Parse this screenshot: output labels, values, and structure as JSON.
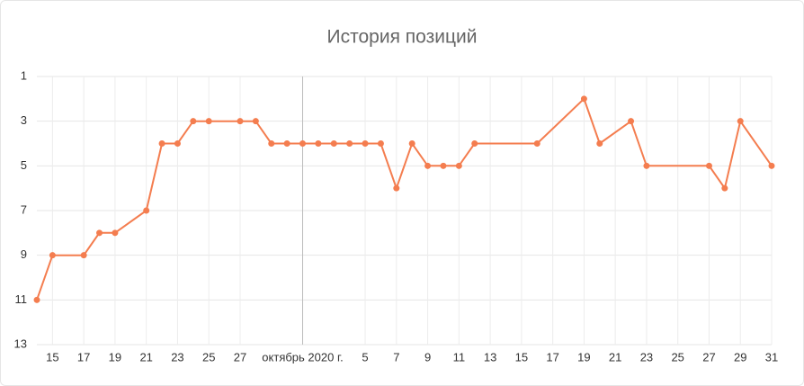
{
  "chart_data": {
    "type": "line",
    "title": "История позиций",
    "x": [
      "2020-09-14",
      "2020-09-15",
      "2020-09-17",
      "2020-09-18",
      "2020-09-19",
      "2020-09-21",
      "2020-09-22",
      "2020-09-23",
      "2020-09-24",
      "2020-09-25",
      "2020-09-27",
      "2020-09-28",
      "2020-09-29",
      "2020-09-30",
      "2020-10-01",
      "2020-10-02",
      "2020-10-03",
      "2020-10-04",
      "2020-10-05",
      "2020-10-06",
      "2020-10-07",
      "2020-10-08",
      "2020-10-09",
      "2020-10-10",
      "2020-10-11",
      "2020-10-12",
      "2020-10-16",
      "2020-10-19",
      "2020-10-20",
      "2020-10-22",
      "2020-10-23",
      "2020-10-27",
      "2020-10-28",
      "2020-10-29",
      "2020-10-31"
    ],
    "series": [
      {
        "color": "#f47d4f",
        "values": [
          11,
          9,
          9,
          8,
          8,
          7,
          4,
          4,
          3,
          3,
          3,
          3,
          4,
          4,
          4,
          4,
          4,
          4,
          4,
          4,
          6,
          4,
          5,
          5,
          5,
          4,
          4,
          2,
          4,
          3,
          5,
          5,
          6,
          3,
          5
        ]
      }
    ],
    "xlim": [
      "2020-09-14",
      "2020-10-31"
    ],
    "xticks": [
      {
        "value": "2020-09-15",
        "label": "15"
      },
      {
        "value": "2020-09-17",
        "label": "17"
      },
      {
        "value": "2020-09-19",
        "label": "19"
      },
      {
        "value": "2020-09-21",
        "label": "21"
      },
      {
        "value": "2020-09-23",
        "label": "23"
      },
      {
        "value": "2020-09-25",
        "label": "25"
      },
      {
        "value": "2020-09-27",
        "label": "27"
      },
      {
        "value": "2020-10-01",
        "label": "октябрь 2020 г."
      },
      {
        "value": "2020-10-05",
        "label": "5"
      },
      {
        "value": "2020-10-07",
        "label": "7"
      },
      {
        "value": "2020-10-09",
        "label": "9"
      },
      {
        "value": "2020-10-11",
        "label": "11"
      },
      {
        "value": "2020-10-13",
        "label": "13"
      },
      {
        "value": "2020-10-15",
        "label": "15"
      },
      {
        "value": "2020-10-17",
        "label": "17"
      },
      {
        "value": "2020-10-19",
        "label": "19"
      },
      {
        "value": "2020-10-21",
        "label": "21"
      },
      {
        "value": "2020-10-23",
        "label": "23"
      },
      {
        "value": "2020-10-25",
        "label": "25"
      },
      {
        "value": "2020-10-27",
        "label": "27"
      },
      {
        "value": "2020-10-29",
        "label": "29"
      },
      {
        "value": "2020-10-31",
        "label": "31"
      }
    ],
    "ylim": [
      1,
      13
    ],
    "y_reversed": true,
    "yticks": [
      1,
      3,
      5,
      7,
      9,
      11,
      13
    ],
    "grid": true
  }
}
